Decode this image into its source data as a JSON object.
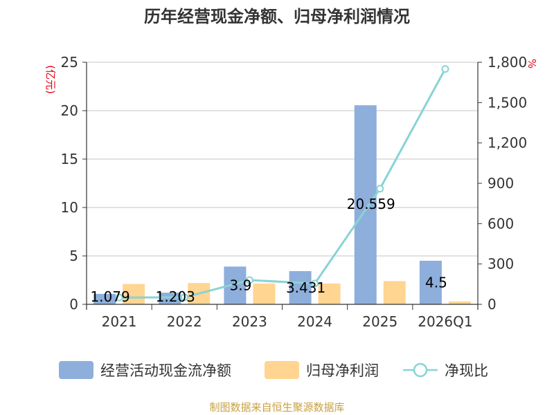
{
  "chart_data": {
    "type": "bar",
    "title": "历年经营现金净额、归母净利润情况",
    "categories": [
      "2021",
      "2022",
      "2023",
      "2024",
      "2025",
      "2026Q1"
    ],
    "left_axis": {
      "unit": "(亿元)",
      "ylim": [
        0,
        25
      ],
      "ticks": [
        "0",
        "5",
        "10",
        "15",
        "20",
        "25"
      ]
    },
    "right_axis": {
      "unit": "%",
      "ylim": [
        0,
        1800
      ],
      "ticks": [
        "0",
        "300",
        "600",
        "900",
        "1,200",
        "1,500",
        "1,800"
      ]
    },
    "series": [
      {
        "name": "经营活动现金流净额",
        "type": "bar",
        "axis": "left",
        "color": "#8eaedb",
        "values": [
          1.079,
          1.203,
          3.9,
          3.431,
          20.559,
          4.5
        ],
        "labels": [
          "1.079",
          "1.203",
          "3.9",
          "3.431",
          "20.559",
          "4.5"
        ]
      },
      {
        "name": "归母净利润",
        "type": "bar",
        "axis": "left",
        "color": "#ffd591",
        "values": [
          2.1,
          2.2,
          2.15,
          2.15,
          2.4,
          0.3
        ]
      },
      {
        "name": "净现比",
        "type": "line",
        "axis": "right",
        "color": "#88d3d6",
        "values": [
          50,
          52,
          180,
          155,
          860,
          1750
        ]
      }
    ],
    "grid": true,
    "legend_position": "bottom"
  },
  "source_text": "制图数据来自恒生聚源数据库"
}
